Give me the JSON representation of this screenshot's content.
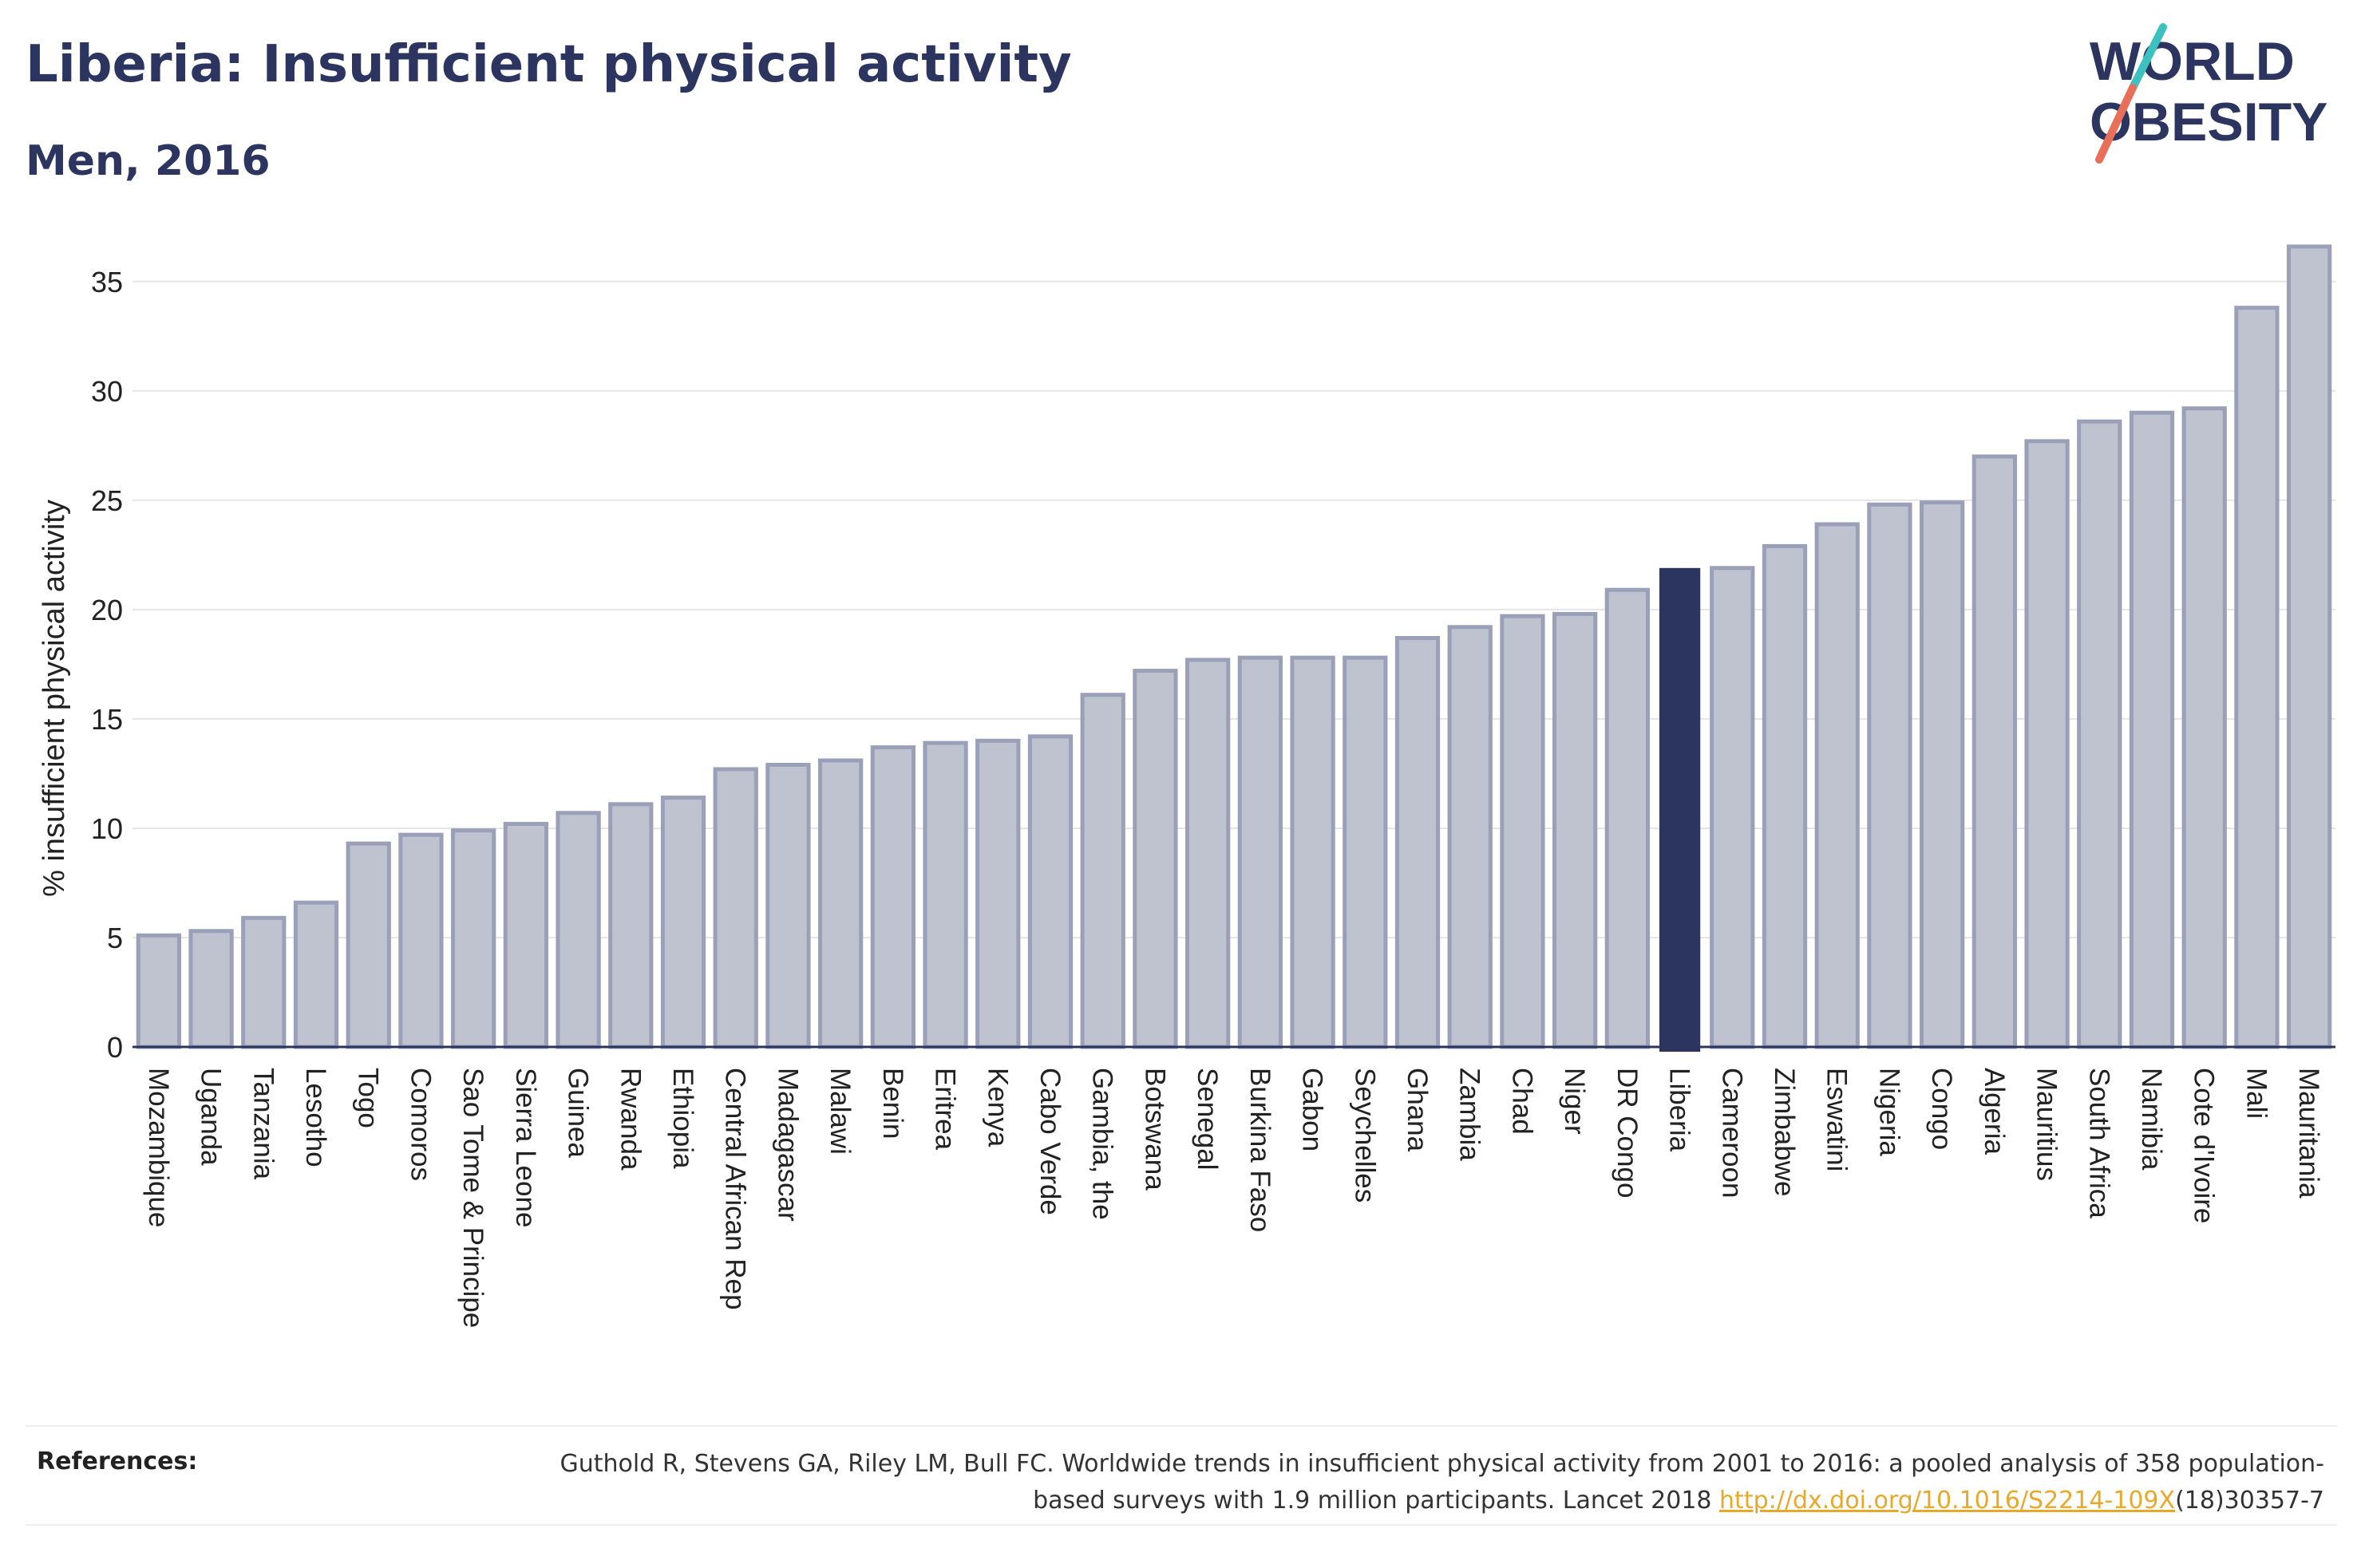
{
  "header": {
    "title": "Liberia: Insufficient physical activity",
    "subtitle": "Men, 2016"
  },
  "logo": {
    "line1": "WORLD",
    "line2": "OBESITY",
    "colors": {
      "text": "#2b3560",
      "slash_teal": "#3cc0c0",
      "slash_coral": "#e8705a"
    }
  },
  "colors": {
    "bar_fill": "#bfc3d0",
    "bar_stroke": "#9aa0b8",
    "highlight_fill": "#2b3560",
    "gridline": "#e6e6e6",
    "axis": "#2b3560"
  },
  "chart_data": {
    "type": "bar",
    "highlight": "Liberia",
    "ylabel": "% insufficient physical activity",
    "xlabel": "",
    "ylim": [
      0,
      37
    ],
    "yticks": [
      0,
      5,
      10,
      15,
      20,
      25,
      30,
      35
    ],
    "grid": true,
    "categories": [
      "Mozambique",
      "Uganda",
      "Tanzania",
      "Lesotho",
      "Togo",
      "Comoros",
      "Sao Tome & Principe",
      "Sierra Leone",
      "Guinea",
      "Rwanda",
      "Ethiopia",
      "Central African Rep",
      "Madagascar",
      "Malawi",
      "Benin",
      "Eritrea",
      "Kenya",
      "Cabo Verde",
      "Gambia, the",
      "Botswana",
      "Senegal",
      "Burkina Faso",
      "Gabon",
      "Seychelles",
      "Ghana",
      "Zambia",
      "Chad",
      "Niger",
      "DR Congo",
      "Liberia",
      "Cameroon",
      "Zimbabwe",
      "Eswatini",
      "Nigeria",
      "Congo",
      "Algeria",
      "Mauritius",
      "South Africa",
      "Namibia",
      "Cote d'Ivoire",
      "Mali",
      "Mauritania"
    ],
    "values": [
      5.1,
      5.3,
      5.9,
      6.6,
      9.3,
      9.7,
      9.9,
      10.2,
      10.7,
      11.1,
      11.4,
      12.7,
      12.9,
      13.1,
      13.7,
      13.9,
      14.0,
      14.2,
      16.1,
      17.2,
      17.7,
      17.8,
      17.8,
      17.8,
      18.7,
      19.2,
      19.7,
      19.8,
      20.9,
      21.9,
      21.9,
      22.9,
      23.9,
      24.8,
      24.9,
      27.0,
      27.7,
      28.6,
      29.0,
      29.2,
      33.8,
      36.6
    ]
  },
  "footer": {
    "references_label": "References:",
    "reference_text": "Guthold R, Stevens GA, Riley LM, Bull FC. Worldwide trends in insufficient physical activity from 2001 to 2016: a pooled analysis of 358 population-based surveys with 1.9 million participants. Lancet 2018",
    "reference_link": "http://dx.doi.org/10.1016/S2214-109X",
    "reference_suffix": "(18)30357-7"
  }
}
